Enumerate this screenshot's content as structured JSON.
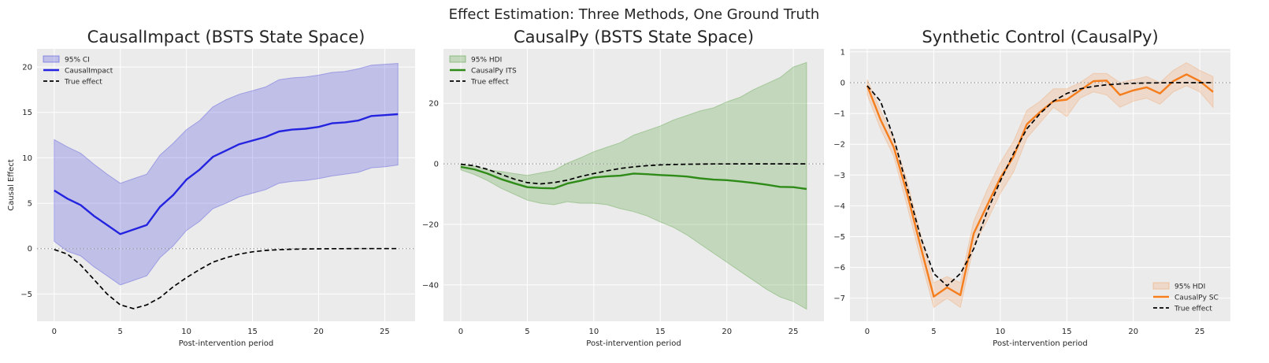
{
  "figure": {
    "suptitle": "Effect Estimation: Three Methods, One Ground Truth"
  },
  "chart_data": [
    {
      "type": "line",
      "title": "CausalImpact (BSTS State Space)",
      "xlabel": "Post-intervention period",
      "ylabel": "Causal Effect",
      "xlim": [
        -1.3,
        27.3
      ],
      "ylim": [
        -8,
        22
      ],
      "xticks": [
        0,
        5,
        10,
        15,
        20,
        25
      ],
      "yticks": [
        -5,
        0,
        5,
        10,
        15,
        20
      ],
      "grid": true,
      "reference_line": 0,
      "legend_position": "top-left",
      "x": [
        0,
        1,
        2,
        3,
        4,
        5,
        6,
        7,
        8,
        9,
        10,
        11,
        12,
        13,
        14,
        15,
        16,
        17,
        18,
        19,
        20,
        21,
        22,
        23,
        24,
        25,
        26
      ],
      "band": {
        "name": "95% CI",
        "color": "#3b3bdb",
        "lower": [
          0.8,
          -0.3,
          -0.8,
          -2.0,
          -3.0,
          -4.0,
          -3.5,
          -3.0,
          -1.0,
          0.3,
          2.0,
          3.0,
          4.4,
          5.0,
          5.7,
          6.1,
          6.5,
          7.2,
          7.4,
          7.5,
          7.7,
          8.0,
          8.2,
          8.4,
          8.9,
          9.0,
          9.2
        ],
        "upper": [
          12.0,
          11.2,
          10.5,
          9.3,
          8.2,
          7.2,
          7.7,
          8.2,
          10.3,
          11.6,
          13.1,
          14.1,
          15.6,
          16.4,
          17.0,
          17.4,
          17.8,
          18.6,
          18.8,
          18.9,
          19.1,
          19.4,
          19.5,
          19.8,
          20.2,
          20.3,
          20.4
        ]
      },
      "series": [
        {
          "name": "CausalImpact",
          "color": "#2424e0",
          "style": "solid",
          "values": [
            6.4,
            5.5,
            4.8,
            3.6,
            2.6,
            1.6,
            2.1,
            2.6,
            4.6,
            5.9,
            7.6,
            8.7,
            10.1,
            10.8,
            11.5,
            11.9,
            12.3,
            12.9,
            13.1,
            13.2,
            13.4,
            13.8,
            13.9,
            14.1,
            14.6,
            14.7,
            14.8
          ]
        },
        {
          "name": "True effect",
          "color": "#000000",
          "style": "dashed",
          "values": [
            -0.1,
            -0.6,
            -1.8,
            -3.4,
            -5.0,
            -6.2,
            -6.6,
            -6.2,
            -5.4,
            -4.2,
            -3.2,
            -2.3,
            -1.5,
            -1.0,
            -0.6,
            -0.35,
            -0.2,
            -0.12,
            -0.07,
            -0.04,
            -0.02,
            -0.01,
            -0.005,
            0,
            0,
            0,
            0
          ]
        }
      ]
    },
    {
      "type": "line",
      "title": "CausalPy (BSTS State Space)",
      "xlabel": "Post-intervention period",
      "ylabel": "",
      "xlim": [
        -1.3,
        27.3
      ],
      "ylim": [
        -52,
        38
      ],
      "xticks": [
        0,
        5,
        10,
        15,
        20,
        25
      ],
      "yticks": [
        -40,
        -20,
        0,
        20
      ],
      "grid": true,
      "reference_line": 0,
      "legend_position": "top-left",
      "x": [
        0,
        1,
        2,
        3,
        4,
        5,
        6,
        7,
        8,
        9,
        10,
        11,
        12,
        13,
        14,
        15,
        16,
        17,
        18,
        19,
        20,
        21,
        22,
        23,
        24,
        25,
        26
      ],
      "band": {
        "name": "95% HDI",
        "color": "#4a9a32",
        "lower": [
          -2.0,
          -3.5,
          -5.5,
          -8.0,
          -10.0,
          -12.0,
          -13.0,
          -13.5,
          -12.5,
          -13.0,
          -13.0,
          -13.5,
          -14.8,
          -15.8,
          -17.2,
          -19.2,
          -21.0,
          -23.5,
          -26.5,
          -29.5,
          -32.5,
          -35.5,
          -38.5,
          -41.5,
          -44.0,
          -45.5,
          -48.0
        ],
        "upper": [
          -0.3,
          -0.8,
          -2.0,
          -2.5,
          -3.2,
          -3.8,
          -3.0,
          -2.2,
          0.2,
          2.0,
          4.0,
          5.5,
          7.0,
          9.5,
          11.0,
          12.5,
          14.5,
          16.0,
          17.5,
          18.5,
          20.5,
          22.0,
          24.5,
          26.5,
          28.5,
          32.0,
          33.5
        ]
      },
      "series": [
        {
          "name": "CausalPy ITS",
          "color": "#2e8b18",
          "style": "solid",
          "values": [
            -1.0,
            -1.8,
            -3.2,
            -5.0,
            -6.4,
            -7.7,
            -8.0,
            -8.1,
            -6.5,
            -5.6,
            -4.5,
            -4.1,
            -3.9,
            -3.2,
            -3.4,
            -3.7,
            -3.9,
            -4.2,
            -4.8,
            -5.2,
            -5.4,
            -5.8,
            -6.3,
            -6.9,
            -7.6,
            -7.7,
            -8.3
          ]
        },
        {
          "name": "True effect",
          "color": "#000000",
          "style": "dashed",
          "values": [
            -0.1,
            -0.6,
            -1.8,
            -3.4,
            -5.0,
            -6.2,
            -6.6,
            -6.2,
            -5.4,
            -4.2,
            -3.2,
            -2.3,
            -1.5,
            -1.0,
            -0.6,
            -0.35,
            -0.2,
            -0.12,
            -0.07,
            -0.04,
            -0.02,
            -0.01,
            -0.005,
            0,
            0,
            0,
            0
          ]
        }
      ]
    },
    {
      "type": "line",
      "title": "Synthetic Control (CausalPy)",
      "xlabel": "Post-intervention period",
      "ylabel": "",
      "xlim": [
        -1.3,
        27.3
      ],
      "ylim": [
        -7.75,
        1.1
      ],
      "xticks": [
        0,
        5,
        10,
        15,
        20,
        25
      ],
      "yticks": [
        -7,
        -6,
        -5,
        -4,
        -3,
        -2,
        -1,
        0,
        1
      ],
      "grid": true,
      "reference_line": 0,
      "legend_position": "bottom-right",
      "x": [
        0,
        1,
        2,
        3,
        4,
        5,
        6,
        7,
        8,
        9,
        10,
        11,
        12,
        13,
        14,
        15,
        16,
        17,
        18,
        19,
        20,
        21,
        22,
        23,
        24,
        25,
        26
      ],
      "band": {
        "name": "95% HDI",
        "color": "#f4a062",
        "lower": [
          -0.4,
          -1.5,
          -2.4,
          -4.0,
          -5.7,
          -7.3,
          -7.0,
          -7.3,
          -5.3,
          -4.5,
          -3.6,
          -2.9,
          -1.8,
          -1.3,
          -0.8,
          -1.1,
          -0.5,
          -0.3,
          -0.4,
          -0.8,
          -0.6,
          -0.5,
          -0.7,
          -0.3,
          -0.1,
          -0.3,
          -0.8
        ],
        "upper": [
          0.1,
          -0.9,
          -1.8,
          -3.2,
          -4.9,
          -6.5,
          -6.3,
          -6.5,
          -4.5,
          -3.5,
          -2.6,
          -1.9,
          -0.9,
          -0.6,
          -0.2,
          -0.2,
          0.0,
          0.3,
          0.3,
          0.0,
          0.1,
          0.2,
          0.0,
          0.4,
          0.65,
          0.4,
          0.2
        ]
      },
      "series": [
        {
          "name": "CausalPy SC",
          "color": "#f57d1c",
          "style": "solid",
          "values": [
            -0.1,
            -1.2,
            -2.1,
            -3.6,
            -5.3,
            -6.95,
            -6.65,
            -6.9,
            -4.9,
            -4.0,
            -3.1,
            -2.4,
            -1.35,
            -0.95,
            -0.6,
            -0.55,
            -0.25,
            0.05,
            0.07,
            -0.4,
            -0.25,
            -0.15,
            -0.35,
            0.05,
            0.27,
            0.05,
            -0.3
          ]
        },
        {
          "name": "True effect",
          "color": "#000000",
          "style": "dashed",
          "values": [
            -0.1,
            -0.6,
            -1.8,
            -3.4,
            -5.0,
            -6.2,
            -6.6,
            -6.2,
            -5.4,
            -4.2,
            -3.2,
            -2.3,
            -1.5,
            -1.0,
            -0.6,
            -0.35,
            -0.2,
            -0.12,
            -0.07,
            -0.04,
            -0.02,
            -0.01,
            -0.005,
            0,
            0,
            0,
            0
          ]
        }
      ]
    }
  ]
}
